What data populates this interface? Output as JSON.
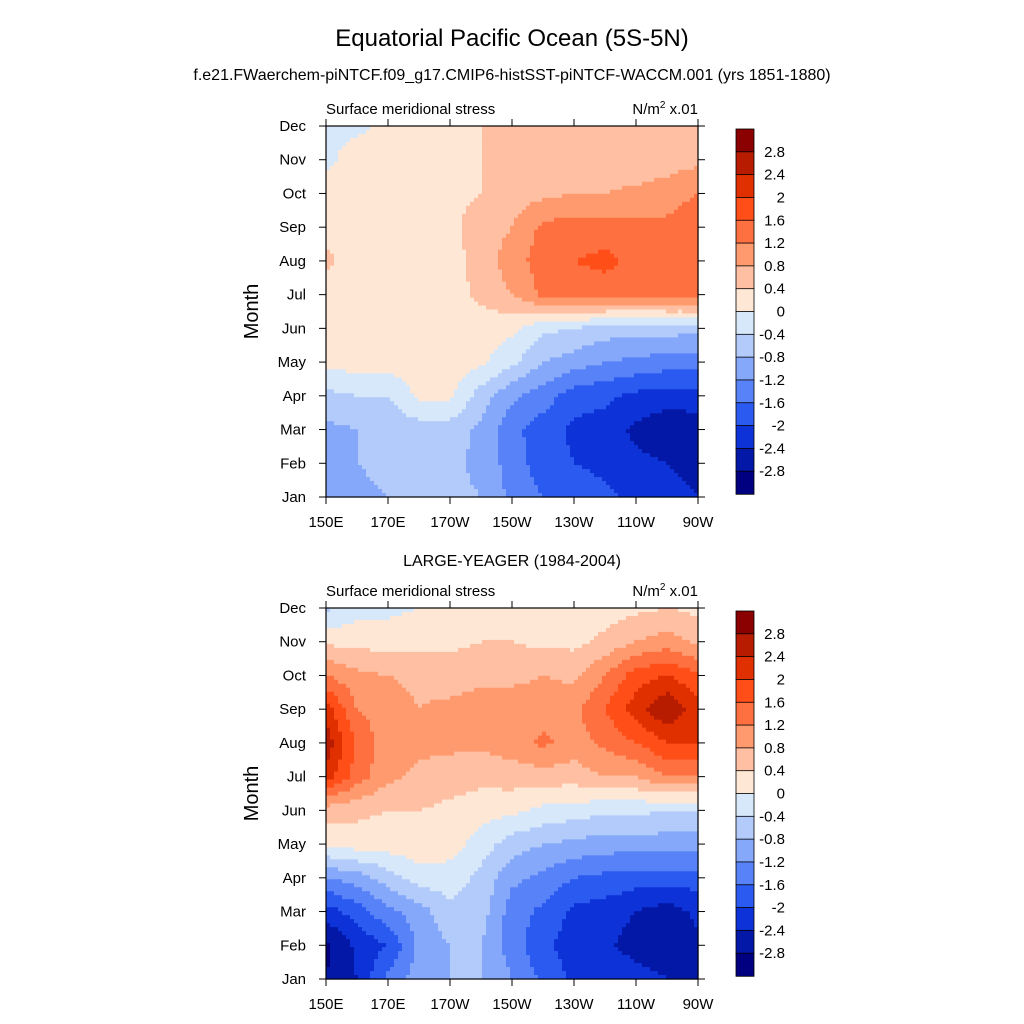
{
  "title": "Equatorial Pacific Ocean (5S-5N)",
  "subtitle": "f.e21.FWaerchem-piNTCF.f09_g17.CMIP6-histSST-piNTCF-WACCM.001 (yrs 1851-1880)",
  "colorbar": {
    "levels": [
      "2.8",
      "2.4",
      "2",
      "1.6",
      "1.2",
      "0.8",
      "0.4",
      "0",
      "-0.4",
      "-0.8",
      "-1.2",
      "-1.6",
      "-2",
      "-2.4",
      "-2.8"
    ],
    "colors": [
      "#8b0000",
      "#b81c00",
      "#e03000",
      "#ff4e17",
      "#ff7040",
      "#ff9a6e",
      "#ffbfa2",
      "#ffe7d6",
      "#d6e8fa",
      "#b2cbfa",
      "#86a8fa",
      "#5882f8",
      "#2b5af0",
      "#0d33d8",
      "#0418a8",
      "#000080"
    ]
  },
  "chart_data": [
    {
      "type": "heatmap",
      "title": "",
      "left_label": "Surface meridional stress",
      "right_label": "N/m",
      "right_label_sup": "2",
      "right_label_suffix": " x.01",
      "ylabel": "Month",
      "xticks": [
        "150E",
        "170E",
        "170W",
        "150W",
        "130W",
        "110W",
        "90W"
      ],
      "yticks": [
        "Jan",
        "Feb",
        "Mar",
        "Apr",
        "May",
        "Jun",
        "Jul",
        "Aug",
        "Sep",
        "Oct",
        "Nov",
        "Dec"
      ],
      "x": [
        150,
        160,
        170,
        180,
        190,
        200,
        210,
        220,
        230,
        240,
        250,
        260,
        270
      ],
      "values": [
        [
          -0.9,
          -0.9,
          -0.8,
          -0.7,
          -0.7,
          -0.8,
          -1.3,
          -1.6,
          -1.8,
          -1.9,
          -2.1,
          -2.3,
          -2.4
        ],
        [
          -1.1,
          -0.8,
          -0.7,
          -0.7,
          -0.7,
          -0.9,
          -1.4,
          -1.8,
          -2.0,
          -2.1,
          -2.3,
          -2.4,
          -2.5
        ],
        [
          -0.9,
          -0.8,
          -0.7,
          -0.6,
          -0.6,
          -0.9,
          -1.5,
          -1.8,
          -2.1,
          -2.2,
          -2.5,
          -2.7,
          -2.6
        ],
        [
          -0.5,
          -0.4,
          -0.4,
          0.1,
          0.1,
          -0.6,
          -1.1,
          -1.4,
          -1.8,
          -1.9,
          -2.1,
          -2.2,
          -2.2
        ],
        [
          0.1,
          0.2,
          0.2,
          0.2,
          0.2,
          0.1,
          -0.3,
          -0.8,
          -1.0,
          -1.2,
          -1.3,
          -1.4,
          -1.4
        ],
        [
          0.2,
          0.2,
          0.2,
          0.2,
          0.2,
          0.2,
          0.1,
          -0.3,
          -0.4,
          -0.6,
          -0.6,
          -0.6,
          -0.7
        ],
        [
          0.2,
          0.2,
          0.2,
          0.2,
          0.2,
          0.5,
          0.8,
          1.3,
          1.4,
          1.4,
          1.4,
          1.4,
          1.5
        ],
        [
          0.5,
          0.2,
          0.2,
          0.2,
          0.2,
          0.6,
          1.0,
          1.4,
          1.6,
          1.7,
          1.5,
          1.5,
          1.5
        ],
        [
          0.2,
          0.2,
          0.2,
          0.2,
          0.3,
          0.6,
          0.8,
          1.3,
          1.4,
          1.4,
          1.3,
          1.3,
          1.5
        ],
        [
          0.2,
          0.2,
          0.2,
          0.2,
          0.3,
          0.4,
          0.6,
          0.7,
          0.8,
          0.8,
          0.9,
          1.0,
          1.2
        ],
        [
          -0.1,
          0.2,
          0.2,
          0.2,
          0.3,
          0.4,
          0.5,
          0.5,
          0.6,
          0.5,
          0.5,
          0.6,
          0.7
        ],
        [
          -0.1,
          -0.1,
          0.1,
          0.2,
          0.3,
          0.4,
          0.5,
          0.5,
          0.5,
          0.5,
          0.5,
          0.5,
          0.6
        ]
      ]
    },
    {
      "type": "heatmap",
      "title": "LARGE-YEAGER (1984-2004)",
      "left_label": "Surface meridional stress",
      "right_label": "N/m",
      "right_label_sup": "2",
      "right_label_suffix": " x.01",
      "ylabel": "Month",
      "xticks": [
        "150E",
        "170E",
        "170W",
        "150W",
        "130W",
        "110W",
        "90W"
      ],
      "yticks": [
        "Jan",
        "Feb",
        "Mar",
        "Apr",
        "May",
        "Jun",
        "Jul",
        "Aug",
        "Sep",
        "Oct",
        "Nov",
        "Dec"
      ],
      "x": [
        150,
        160,
        170,
        180,
        190,
        200,
        210,
        220,
        230,
        240,
        250,
        260,
        270
      ],
      "values": [
        [
          -2.8,
          -2.4,
          -1.5,
          -1.0,
          -0.8,
          -0.8,
          -1.2,
          -1.7,
          -2.1,
          -2.0,
          -2.2,
          -2.4,
          -2.4
        ],
        [
          -2.9,
          -2.3,
          -2.0,
          -1.1,
          -0.8,
          -0.8,
          -1.4,
          -1.9,
          -2.2,
          -2.3,
          -2.6,
          -2.7,
          -2.5
        ],
        [
          -2.2,
          -1.8,
          -1.3,
          -1.0,
          -0.5,
          -0.6,
          -1.4,
          -1.7,
          -2.1,
          -2.2,
          -2.4,
          -2.6,
          -2.3
        ],
        [
          -1.2,
          -1.0,
          -0.6,
          -0.2,
          -0.2,
          -0.5,
          -1.1,
          -1.3,
          -1.6,
          -1.7,
          -1.8,
          -1.8,
          -1.8
        ],
        [
          0.1,
          0.2,
          0.2,
          0.3,
          0.2,
          -0.2,
          -0.6,
          -0.8,
          -0.9,
          -1.0,
          -1.0,
          -1.0,
          -1.0
        ],
        [
          0.6,
          0.5,
          0.4,
          0.4,
          0.3,
          0.2,
          0.1,
          -0.1,
          -0.2,
          -0.3,
          -0.3,
          -0.4,
          -0.4
        ],
        [
          2.2,
          1.4,
          0.9,
          0.7,
          0.6,
          0.5,
          0.6,
          0.6,
          0.6,
          0.8,
          0.8,
          1.2,
          1.2
        ],
        [
          2.7,
          1.5,
          1.0,
          0.9,
          0.9,
          0.9,
          1.0,
          1.3,
          1.0,
          1.3,
          1.6,
          2.0,
          2.0
        ],
        [
          2.2,
          1.2,
          1.0,
          0.8,
          0.9,
          1.0,
          1.0,
          1.0,
          1.1,
          1.6,
          2.2,
          2.8,
          2.1
        ],
        [
          1.2,
          0.9,
          0.8,
          0.7,
          0.6,
          0.7,
          0.7,
          0.8,
          0.7,
          1.2,
          1.8,
          2.0,
          1.7
        ],
        [
          0.3,
          0.3,
          0.2,
          0.3,
          0.3,
          0.4,
          0.4,
          0.3,
          0.3,
          0.5,
          0.8,
          1.0,
          0.7
        ],
        [
          -0.5,
          -0.2,
          -0.1,
          0.0,
          0.1,
          0.2,
          0.2,
          0.2,
          0.2,
          0.2,
          0.3,
          0.4,
          0.3
        ]
      ]
    }
  ]
}
